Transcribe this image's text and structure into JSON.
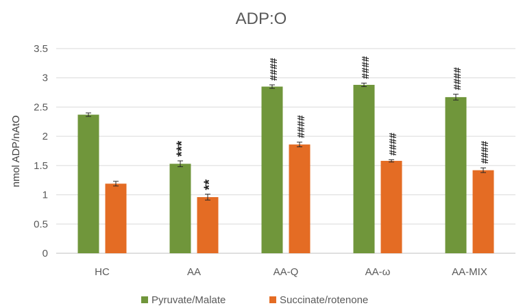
{
  "chart_data": {
    "type": "bar",
    "title": "ADP:O",
    "ylabel": "nmol ADP/nAtO",
    "xlabel": "",
    "ylim": [
      0,
      3.5
    ],
    "ytick_step": 0.5,
    "yticks": [
      "0",
      "0.5",
      "1",
      "1.5",
      "2",
      "2.5",
      "3",
      "3.5"
    ],
    "grid": true,
    "legend_position": "bottom",
    "categories": [
      "HC",
      "AA",
      "AA-Q",
      "AA-ω",
      "AA-MIX"
    ],
    "series": [
      {
        "name": "Pyruvate/Malate",
        "color": "#70963b",
        "values": [
          2.37,
          1.53,
          2.85,
          2.88,
          2.67
        ],
        "errors": [
          0.03,
          0.05,
          0.03,
          0.03,
          0.05
        ],
        "annotations": [
          "",
          "***",
          "####",
          "####",
          "####"
        ]
      },
      {
        "name": "Succinate/rotenone",
        "color": "#e46c24",
        "values": [
          1.19,
          0.96,
          1.86,
          1.58,
          1.42
        ],
        "errors": [
          0.04,
          0.05,
          0.04,
          0.02,
          0.04
        ],
        "annotations": [
          "",
          "**",
          "####",
          "####",
          "####"
        ]
      }
    ]
  }
}
